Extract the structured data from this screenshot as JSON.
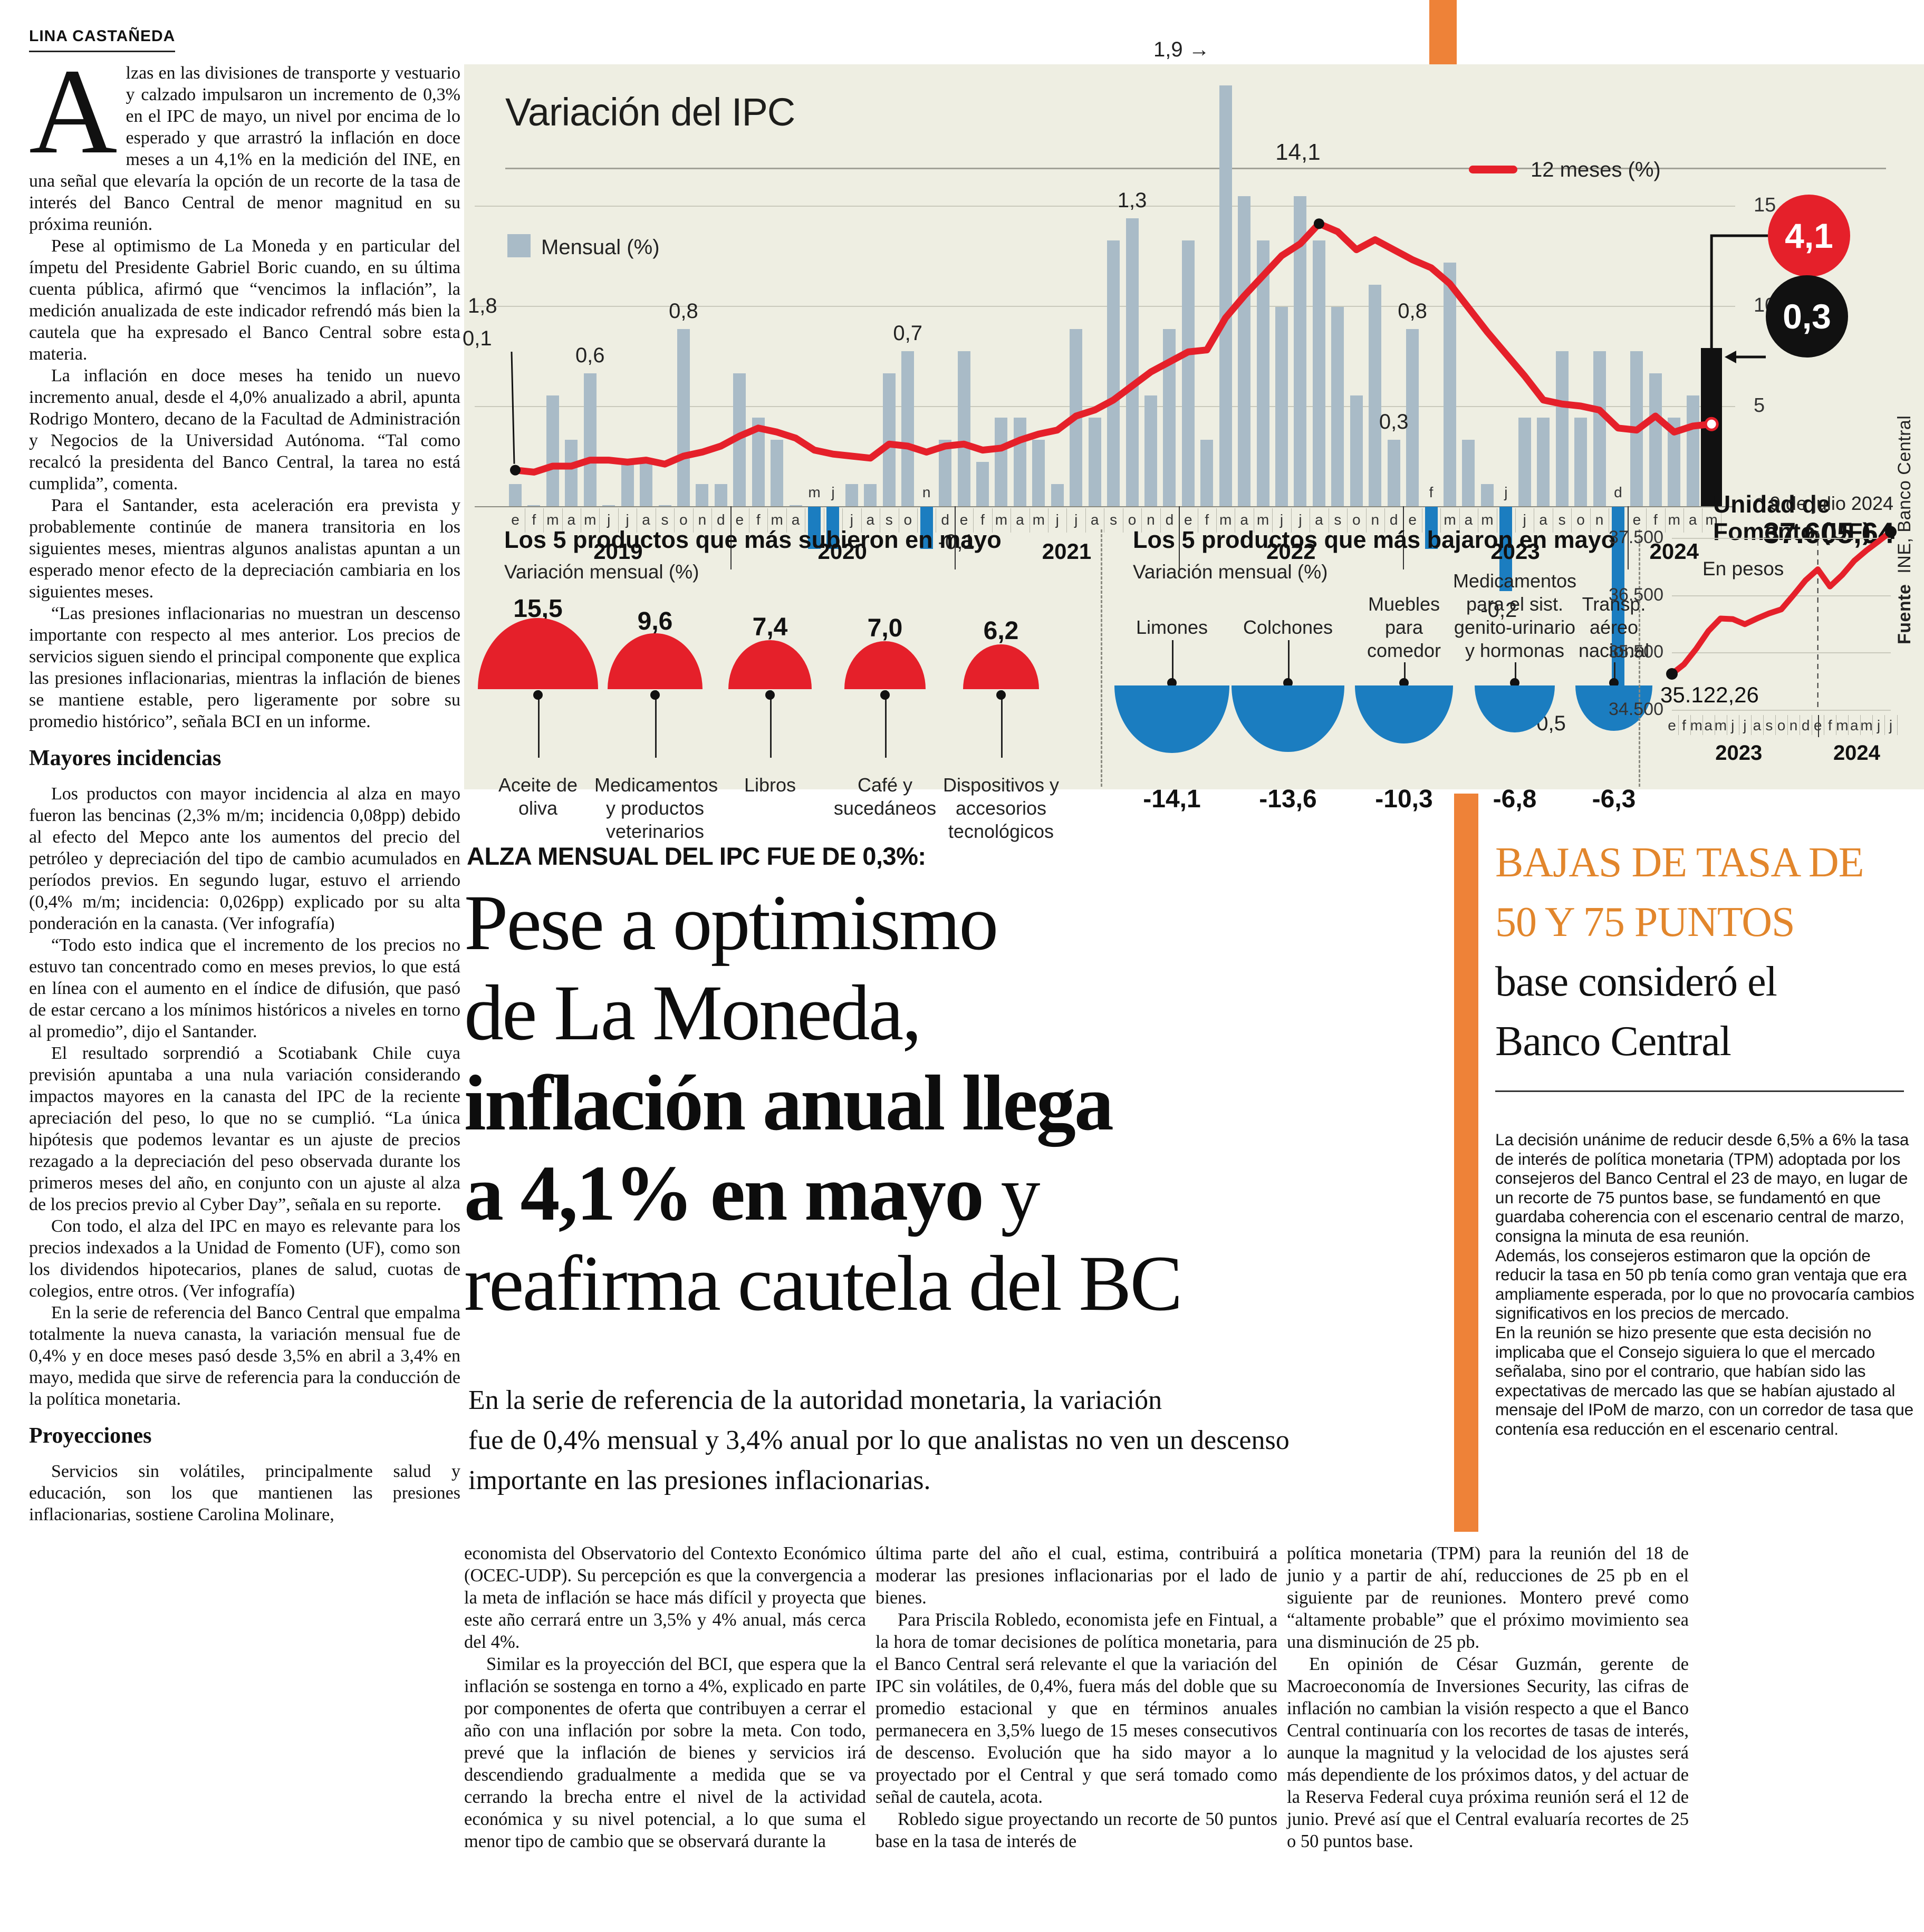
{
  "byline": "LINA CASTAÑEDA",
  "kicker": "ALZA MENSUAL DEL IPC FUE DE 0,3%:",
  "headline": {
    "lines": [
      [
        {
          "t": "Pese a optimismo",
          "b": 0
        }
      ],
      [
        {
          "t": "de La Moneda,",
          "b": 0
        }
      ],
      [
        {
          "t": "inflación anual llega",
          "b": 1
        }
      ],
      [
        {
          "t": "a 4,1% en mayo",
          "b": 1
        },
        {
          "t": " y",
          "b": 0
        }
      ],
      [
        {
          "t": "reafirma cautela del BC",
          "b": 0
        }
      ]
    ]
  },
  "subheadline_lines": [
    "En la serie de referencia de la autoridad monetaria, la variación",
    "fue de 0,4% mensual y 3,4% anual por lo que analistas no ven un descenso",
    "importante en las presiones inflacionarias."
  ],
  "left_column": {
    "blocks": [
      {
        "type": "dropcap_p",
        "cap": "A",
        "text": "lzas en las divisiones de transporte y vestuario y calzado impulsaron un incremento de 0,3% en el IPC de mayo, un nivel por encima de lo esperado y que arrastró la inflación en doce meses a un 4,1% en la medición del INE, en una señal que elevaría la opción de un recorte de la tasa de interés del Banco Central de menor magnitud en su próxima reunión."
      },
      {
        "type": "p",
        "text": "Pese al optimismo de La Moneda y en particular del ímpetu del Presidente Gabriel Boric cuando, en su última cuenta pública, afirmó que “vencimos la inflación”, la medición anualizada de este indicador refrendó más bien la cautela que ha expresado el Banco Central sobre esta materia."
      },
      {
        "type": "p",
        "text": "La inflación en doce meses ha tenido un nuevo incremento anual, desde el 4,0% anualizado a abril, apunta Rodrigo Montero, decano de la Facultad de Administración y Negocios de la Universidad Autónoma. “Tal como recalcó la presidenta del Banco Central, la tarea no está cumplida”, comenta."
      },
      {
        "type": "p",
        "text": "Para el Santander, esta aceleración era prevista y probablemente continúe de manera transitoria en los siguientes meses, mientras algunos analistas apuntan a un esperado menor efecto de la depreciación cambiaria en los siguientes meses."
      },
      {
        "type": "p",
        "text": "“Las presiones inflacionarias no muestran un descenso importante con respecto al mes anterior. Los precios de servicios siguen siendo el principal componente que explica las presiones inflacionarias, mientras la inflación de bienes se mantiene estable, pero ligeramente por sobre su promedio histórico”, señala BCI en un informe."
      },
      {
        "type": "h",
        "text": "Mayores incidencias"
      },
      {
        "type": "p",
        "text": "Los productos con mayor incidencia al alza en mayo fueron las bencinas (2,3% m/m; incidencia 0,08pp) debido al efecto del Mepco ante los aumentos del precio del petróleo y depreciación del tipo de cambio acumulados en períodos previos. En segundo lugar, estuvo el arriendo (0,4% m/m; incidencia: 0,026pp) explicado por su alta ponderación en la canasta. (Ver infografía)"
      },
      {
        "type": "p",
        "text": "“Todo esto indica que el incremento de los precios no estuvo tan concentrado como en meses previos, lo que está en línea con el aumento en el índice de difusión, que pasó de estar cercano a los mínimos históricos a niveles en torno al promedio”, dijo el Santander."
      },
      {
        "type": "p",
        "text": "El resultado sorprendió a Scotiabank Chile cuya previsión apuntaba a una nula variación considerando impactos mayores en la canasta del IPC de la reciente apreciación del peso, lo que no se cumplió. “La única hipótesis que podemos levantar es un ajuste de precios rezagado a la depreciación del peso observada durante los primeros meses del año, en conjunto con un ajuste al alza de los precios previo al Cyber Day”, señala en su reporte."
      },
      {
        "type": "p",
        "text": "Con todo, el alza del IPC en mayo es relevante para los precios indexados a la Unidad de Fomento (UF), como son los dividendos hipotecarios, planes de salud, cuotas de colegios, entre otros. (Ver infografía)"
      },
      {
        "type": "p",
        "text": "En la serie de referencia del Banco Central que empalma totalmente la nueva canasta, la variación mensual fue de 0,4% y en doce meses pasó desde 3,5% en abril a 3,4% en mayo, medida que sirve de referencia para la conducción de la política monetaria."
      },
      {
        "type": "h",
        "text": "Proyecciones"
      },
      {
        "type": "p",
        "text": "Servicios sin volátiles, principalmente salud y educación, son los que mantienen las presiones inflacionarias, sostiene Carolina Molinare,"
      }
    ]
  },
  "bottom_columns": [
    {
      "paragraphs": [
        {
          "text": "economista del Observatorio del Contexto Económico (OCEC-UDP). Su percepción es que la convergencia a la meta de inflación se hace más difícil y proyecta que este año cerrará entre un 3,5% y 4% anual, más cerca del 4%.",
          "indent": false
        },
        {
          "text": "Similar es la proyección del BCI, que espera que la inflación se sostenga en torno a 4%, explicado en parte por componentes de oferta que contribuyen a cerrar el año con una inflación por sobre la meta. Con todo, prevé que la inflación de bienes y servicios irá descendiendo gradualmente a medida que se va cerrando la brecha entre el nivel de la actividad económica y su nivel potencial, a lo que suma el menor tipo de cambio que se observará durante la",
          "indent": true
        }
      ]
    },
    {
      "paragraphs": [
        {
          "text": "última parte del año el cual, estima, contribuirá a moderar las presiones inflacionarias por el lado de bienes.",
          "indent": false
        },
        {
          "text": "Para Priscila Robledo, economista jefe en Fintual, a la hora de tomar decisiones de política monetaria, para el Banco Central será relevante el que la variación del IPC sin volátiles, de 0,4%, fuera más del doble que su promedio estacional y que en términos anuales permanecera en 3,5% luego de 15 meses consecutivos de descenso. Evolución que ha sido mayor a lo proyectado por el Central y que será tomado como señal de cautela, acota.",
          "indent": true
        },
        {
          "text": "Robledo sigue proyectando un recorte de 50 puntos base en la tasa de interés de",
          "indent": true
        }
      ]
    },
    {
      "paragraphs": [
        {
          "text": "política monetaria (TPM) para la reunión del 18 de junio y a partir de ahí, reducciones de 25 pb en el siguiente par de reuniones. Montero prevé como “altamente probable” que el próximo movimiento sea una disminución de 25 pb.",
          "indent": false
        },
        {
          "text": "En opinión de César Guzmán, gerente de Macroeconomía de Inversiones Security, las cifras de inflación no cambian la visión respecto a que el Banco Central continuaría con los recortes de tasas de interés, aunque la magnitud y la velocidad de los ajustes será más dependiente de los próximos datos, y del actuar de la Reserva Federal cuya próxima reunión será el 12 de junio. Prevé así que el Central evaluaría recortes de 25 o 50 puntos base.",
          "indent": true
        }
      ]
    }
  ],
  "sidebar": {
    "title_lines": [
      {
        "text": "BAJAS DE TASA DE",
        "orange": true
      },
      {
        "text": "50 Y 75 PUNTOS",
        "orange": true
      },
      {
        "text": "base consideró el",
        "orange": false
      },
      {
        "text": "Banco Central",
        "orange": false
      }
    ],
    "paragraphs": [
      "La decisión unánime de reducir desde 6,5% a 6% la tasa de interés de política monetaria (TPM) adoptada por los consejeros del Banco Central el 23 de mayo, en lugar de un recorte de 75 puntos base, se fundamentó en que guardaba coherencia con el escenario central de marzo, consigna la minuta de esa reunión.",
      "Además, los consejeros estimaron que la opción de reducir la tasa en 50 pb tenía como gran ventaja que era ampliamente esperada, por lo que no provocaría cambios significativos en los precios de mercado.",
      "En la reunión se hizo presente que esta decisión no implicaba que el Consejo siguiera lo que el mercado señalaba, sino por el contrario, que habían sido las expectativas de mercado las que se habían ajustado al mensaje del IPoM de marzo, con un corredor de tasa que contenía esa reducción en el escenario central."
    ]
  },
  "colors": {
    "accent_orange": "#ee8238",
    "orange_title": "#e2862c",
    "red": "#e5202a",
    "blue": "#1b7dc0",
    "bar_gray": "#a9bbc7",
    "panel_beige": "#eeeee2",
    "black": "#111111"
  },
  "chart_data": [
    {
      "id": "ipc",
      "type": "bar",
      "title": "Variación del IPC",
      "legend": [
        {
          "label": "Mensual (%)",
          "color": "#a9bbc7"
        },
        {
          "label": "12 meses (%)",
          "color": "#e5202a"
        }
      ],
      "month_letters": [
        "e",
        "f",
        "m",
        "a",
        "m",
        "j",
        "j",
        "a",
        "s",
        "o",
        "n",
        "d"
      ],
      "years": [
        "2019",
        "2020",
        "2021",
        "2022",
        "2023",
        "2024"
      ],
      "ylabel": "",
      "y_axis_right": [
        "15",
        "10",
        "5",
        "0"
      ],
      "monthly": [
        0.1,
        0.0,
        0.5,
        0.3,
        0.6,
        0.0,
        0.2,
        0.2,
        0.0,
        0.8,
        0.1,
        0.1,
        0.6,
        0.4,
        0.3,
        0.0,
        -0.1,
        -0.1,
        0.1,
        0.1,
        0.6,
        0.7,
        -0.1,
        0.3,
        0.7,
        0.2,
        0.4,
        0.4,
        0.3,
        0.1,
        0.8,
        0.4,
        1.2,
        1.3,
        0.5,
        0.8,
        1.2,
        0.3,
        1.9,
        1.4,
        1.2,
        0.9,
        1.4,
        1.2,
        0.9,
        0.5,
        1.0,
        0.3,
        0.8,
        -0.1,
        1.1,
        0.3,
        0.1,
        -0.2,
        0.4,
        0.4,
        0.7,
        0.4,
        0.7,
        -0.5,
        0.7,
        0.6,
        0.4,
        0.5,
        0.3
      ],
      "annual": [
        1.8,
        1.7,
        2.0,
        2.0,
        2.3,
        2.3,
        2.2,
        2.3,
        2.1,
        2.5,
        2.7,
        3.0,
        3.5,
        3.9,
        3.7,
        3.4,
        2.8,
        2.6,
        2.5,
        2.4,
        3.1,
        3.0,
        2.7,
        3.0,
        3.1,
        2.8,
        2.9,
        3.3,
        3.6,
        3.8,
        4.5,
        4.8,
        5.3,
        6.0,
        6.7,
        7.2,
        7.7,
        7.8,
        9.4,
        10.5,
        11.5,
        12.5,
        13.1,
        14.1,
        13.7,
        12.8,
        13.3,
        12.8,
        12.3,
        11.9,
        11.1,
        9.9,
        8.7,
        7.6,
        6.5,
        5.3,
        5.1,
        5.0,
        4.8,
        3.9,
        3.8,
        4.5,
        3.7,
        4.0,
        4.1
      ],
      "bar_labels": {
        "4": "0,6",
        "9": "0,8",
        "21": "0,7",
        "33": "1,3",
        "47": "0,3",
        "48": "0,8"
      },
      "arrow_bar_label": {
        "index": 38,
        "text": "1,9"
      },
      "start_labels": {
        "annual": "1,8",
        "monthly": "0,1"
      },
      "peak_label": {
        "index": 43,
        "text": "14,1"
      },
      "neg_labels": {
        "22": "-0,1",
        "53": "-0,2",
        "59": "-0,5"
      },
      "badges": {
        "annual": "4,1",
        "monthly": "0,3"
      },
      "source_bold": "Fuente",
      "source": "INE, Banco Central"
    },
    {
      "id": "subieron",
      "type": "half-dome-up",
      "title": "Los 5 productos que más subieron en mayo",
      "subtitle": "Variación mensual (%)",
      "color": "#e5202a",
      "items": [
        {
          "label": "Aceite de oliva",
          "value": 15.5,
          "display": "15,5"
        },
        {
          "label": "Medicamentos y productos veterinarios",
          "value": 9.6,
          "display": "9,6"
        },
        {
          "label": "Libros",
          "value": 7.4,
          "display": "7,4"
        },
        {
          "label": "Café y sucedáneos",
          "value": 7.0,
          "display": "7,0"
        },
        {
          "label": "Dispositivos y accesorios tecnológicos",
          "value": 6.2,
          "display": "6,2"
        }
      ]
    },
    {
      "id": "bajaron",
      "type": "half-dome-down",
      "title": "Los 5 productos que más bajaron en mayo",
      "subtitle": "Variación mensual (%)",
      "color": "#1b7dc0",
      "items": [
        {
          "label": "Limones",
          "value": -14.1,
          "display": "-14,1"
        },
        {
          "label": "Colchones",
          "value": -13.6,
          "display": "-13,6"
        },
        {
          "label": "Muebles para comedor",
          "value": -10.3,
          "display": "-10,3"
        },
        {
          "label": "Medicamentos para el sist. genito-urinario y hormonas",
          "value": -6.8,
          "display": "-6,8"
        },
        {
          "label": "Transp. aéreo nacional",
          "value": -6.3,
          "display": "-6,3"
        }
      ]
    },
    {
      "id": "uf",
      "type": "line",
      "title_lines": [
        "Unidad de",
        "Fomento (UF)"
      ],
      "date_label": "9 de julio 2024",
      "current_value": "37.605,64",
      "unit_label": "En pesos",
      "start_label": "35.122,26",
      "y_ticks": [
        "37.500",
        "36.500",
        "35.500",
        "34.500"
      ],
      "y_tick_values": [
        37500,
        36500,
        35500,
        34500
      ],
      "x_letters": [
        "e",
        "f",
        "m",
        "a",
        "m",
        "j",
        "j",
        "a",
        "s",
        "o",
        "n",
        "d",
        "e",
        "f",
        "m",
        "a",
        "m",
        "j",
        "j"
      ],
      "years": [
        "2023",
        "2024"
      ],
      "values": [
        35122,
        35290,
        35560,
        35870,
        36090,
        36080,
        35990,
        36090,
        36180,
        36250,
        36500,
        36760,
        36950,
        36650,
        36850,
        37100,
        37280,
        37440,
        37605
      ]
    }
  ]
}
